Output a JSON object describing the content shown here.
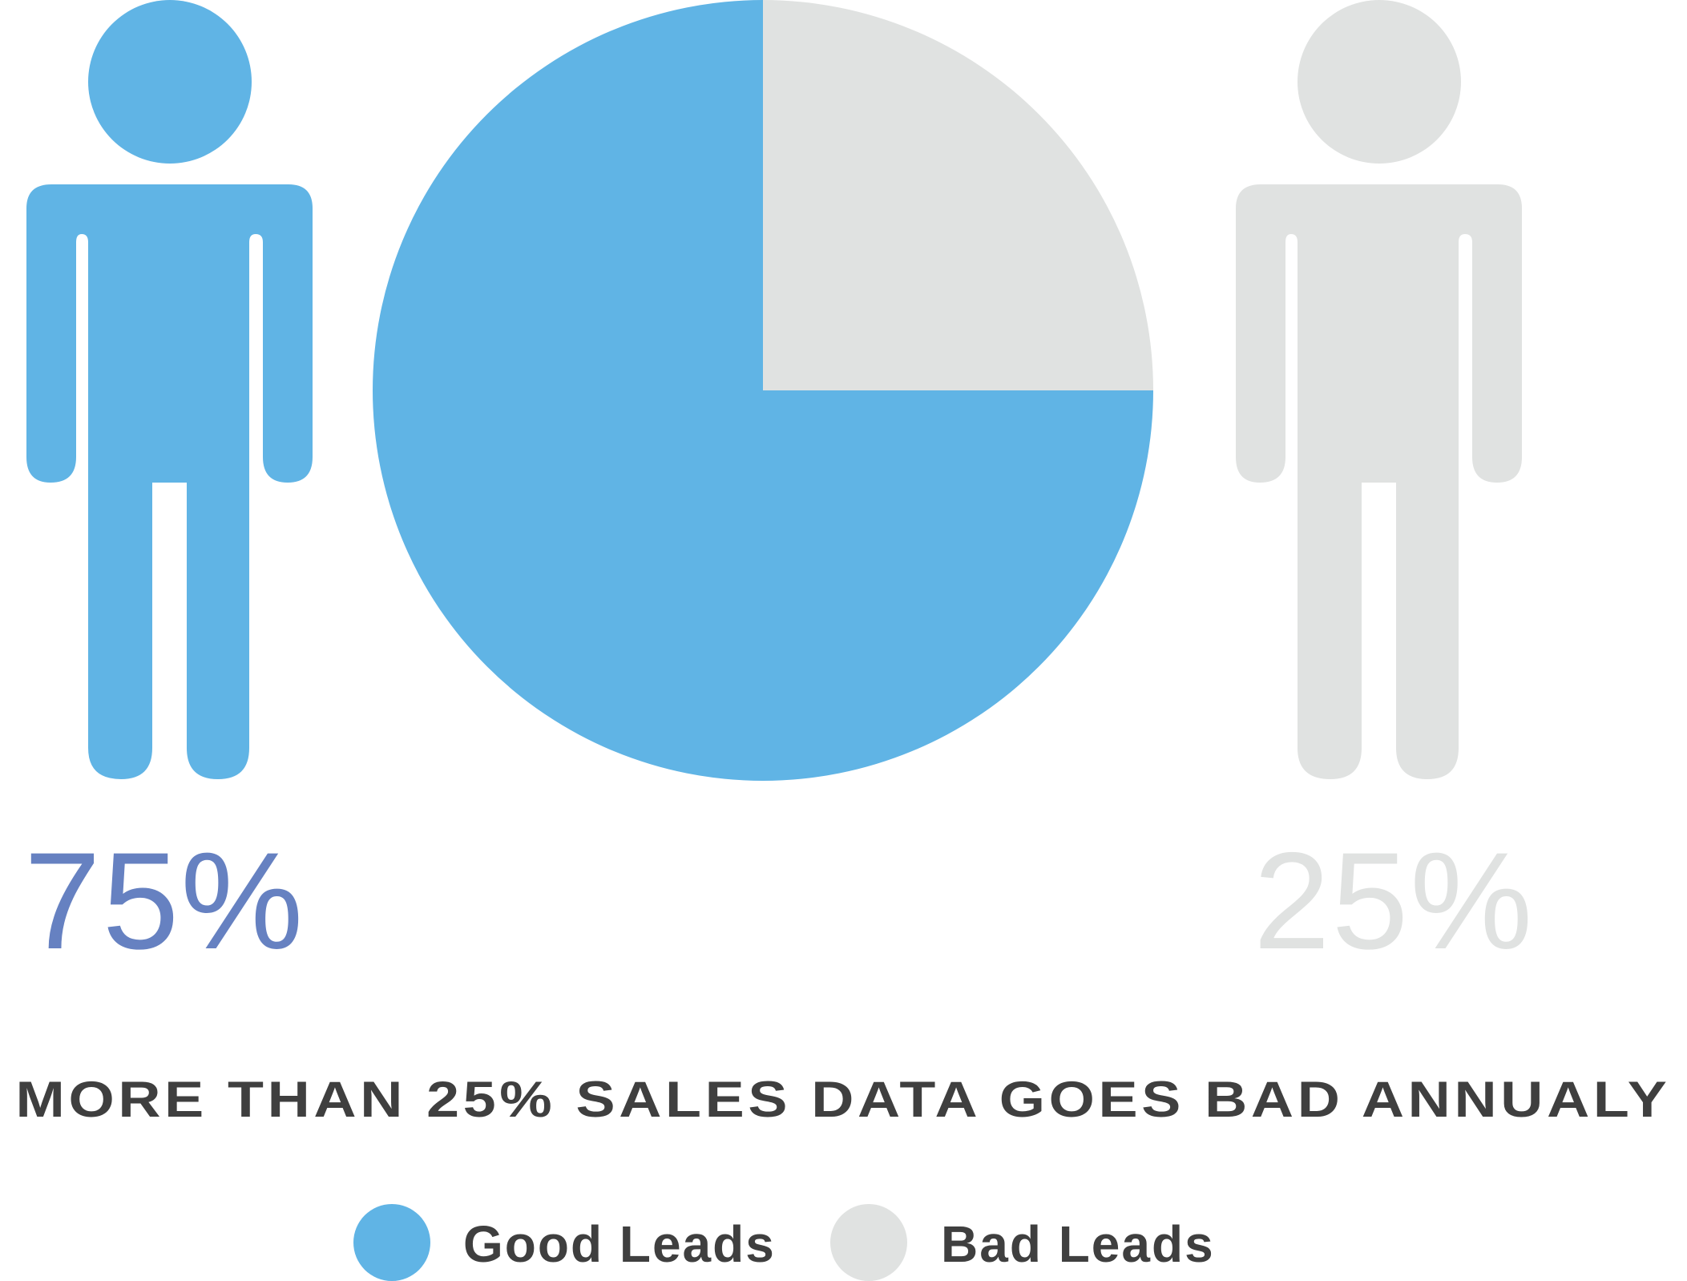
{
  "chart_data": {
    "type": "pie",
    "title": "MORE THAN 25% SALES DATA GOES BAD ANNUALY",
    "categories": [
      "Good Leads",
      "Bad Leads"
    ],
    "values": [
      75,
      25
    ],
    "value_labels": [
      "75%",
      "25%"
    ],
    "legend": "bottom-center"
  },
  "colors": {
    "good": "#60B4E5",
    "bad": "#E0E2E1",
    "good_percent_text": "#6681C1",
    "bad_percent_text": "#E0E2E1",
    "headline_text": "#3F3F3F",
    "legend_text": "#3F3F3F"
  },
  "icons": {
    "left": "person-icon",
    "right": "person-icon"
  }
}
